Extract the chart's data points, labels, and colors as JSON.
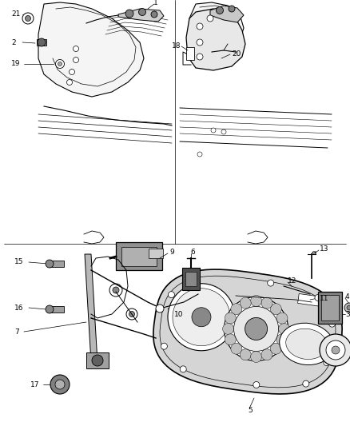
{
  "bg": "#ffffff",
  "lc": "#000000",
  "fs": 6.5,
  "fig_w": 4.38,
  "fig_h": 5.33,
  "dpi": 100
}
